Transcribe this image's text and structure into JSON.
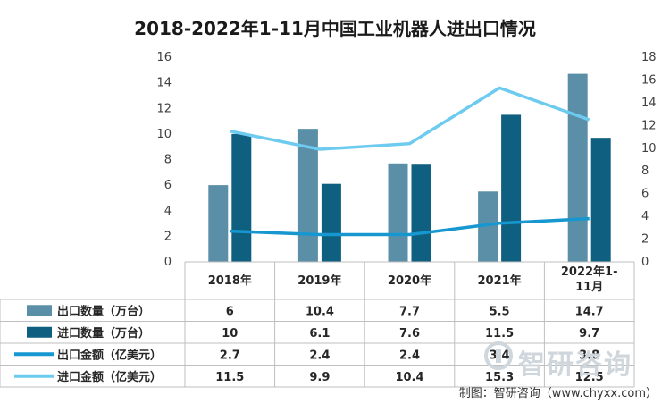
{
  "title": "2018-2022年1-11月中国工业机器人进出口情况",
  "source": "制图：智研咨询（www.chyxx.com）",
  "watermark": "智研咨询",
  "chart_data": {
    "type": "bar",
    "categories": [
      "2018年",
      "2019年",
      "2020年",
      "2021年",
      "2022年1-11月"
    ],
    "category_lines": [
      [
        "2018年"
      ],
      [
        "2019年"
      ],
      [
        "2020年"
      ],
      [
        "2021年"
      ],
      [
        "2022年1-",
        "11月"
      ]
    ],
    "left_axis": {
      "min": 0,
      "max": 16,
      "ticks": [
        "0",
        "2",
        "4",
        "6",
        "8",
        "10",
        "12",
        "14",
        "16"
      ]
    },
    "right_axis": {
      "min": 0,
      "max": 18,
      "ticks": [
        "0",
        "2",
        "4",
        "6",
        "8",
        "10",
        "12",
        "14",
        "16",
        "18"
      ]
    },
    "grid": false,
    "legend": "table-rows-bottom",
    "series": [
      {
        "name": "出口数量（万台）",
        "kind": "bar",
        "axis": "left",
        "color": "#5b8fa8",
        "values": [
          6,
          10.4,
          7.7,
          5.5,
          14.7
        ],
        "labels": [
          "6",
          "10.4",
          "7.7",
          "5.5",
          "14.7"
        ]
      },
      {
        "name": "进口数量（万台）",
        "kind": "bar",
        "axis": "left",
        "color": "#0f5f80",
        "values": [
          10,
          6.1,
          7.6,
          11.5,
          9.7
        ],
        "labels": [
          "10",
          "6.1",
          "7.6",
          "11.5",
          "9.7"
        ]
      },
      {
        "name": "出口金额（亿美元）",
        "kind": "line",
        "axis": "right",
        "color": "#1697d0",
        "values": [
          2.7,
          2.4,
          2.4,
          3.4,
          3.8
        ],
        "labels": [
          "2.7",
          "2.4",
          "2.4",
          "3.4",
          "3.8"
        ]
      },
      {
        "name": "进口金额（亿美元）",
        "kind": "line",
        "axis": "right",
        "color": "#6ccbef",
        "values": [
          11.5,
          9.9,
          10.4,
          15.3,
          12.5
        ],
        "labels": [
          "11.5",
          "9.9",
          "10.4",
          "15.3",
          "12.5"
        ]
      }
    ]
  }
}
